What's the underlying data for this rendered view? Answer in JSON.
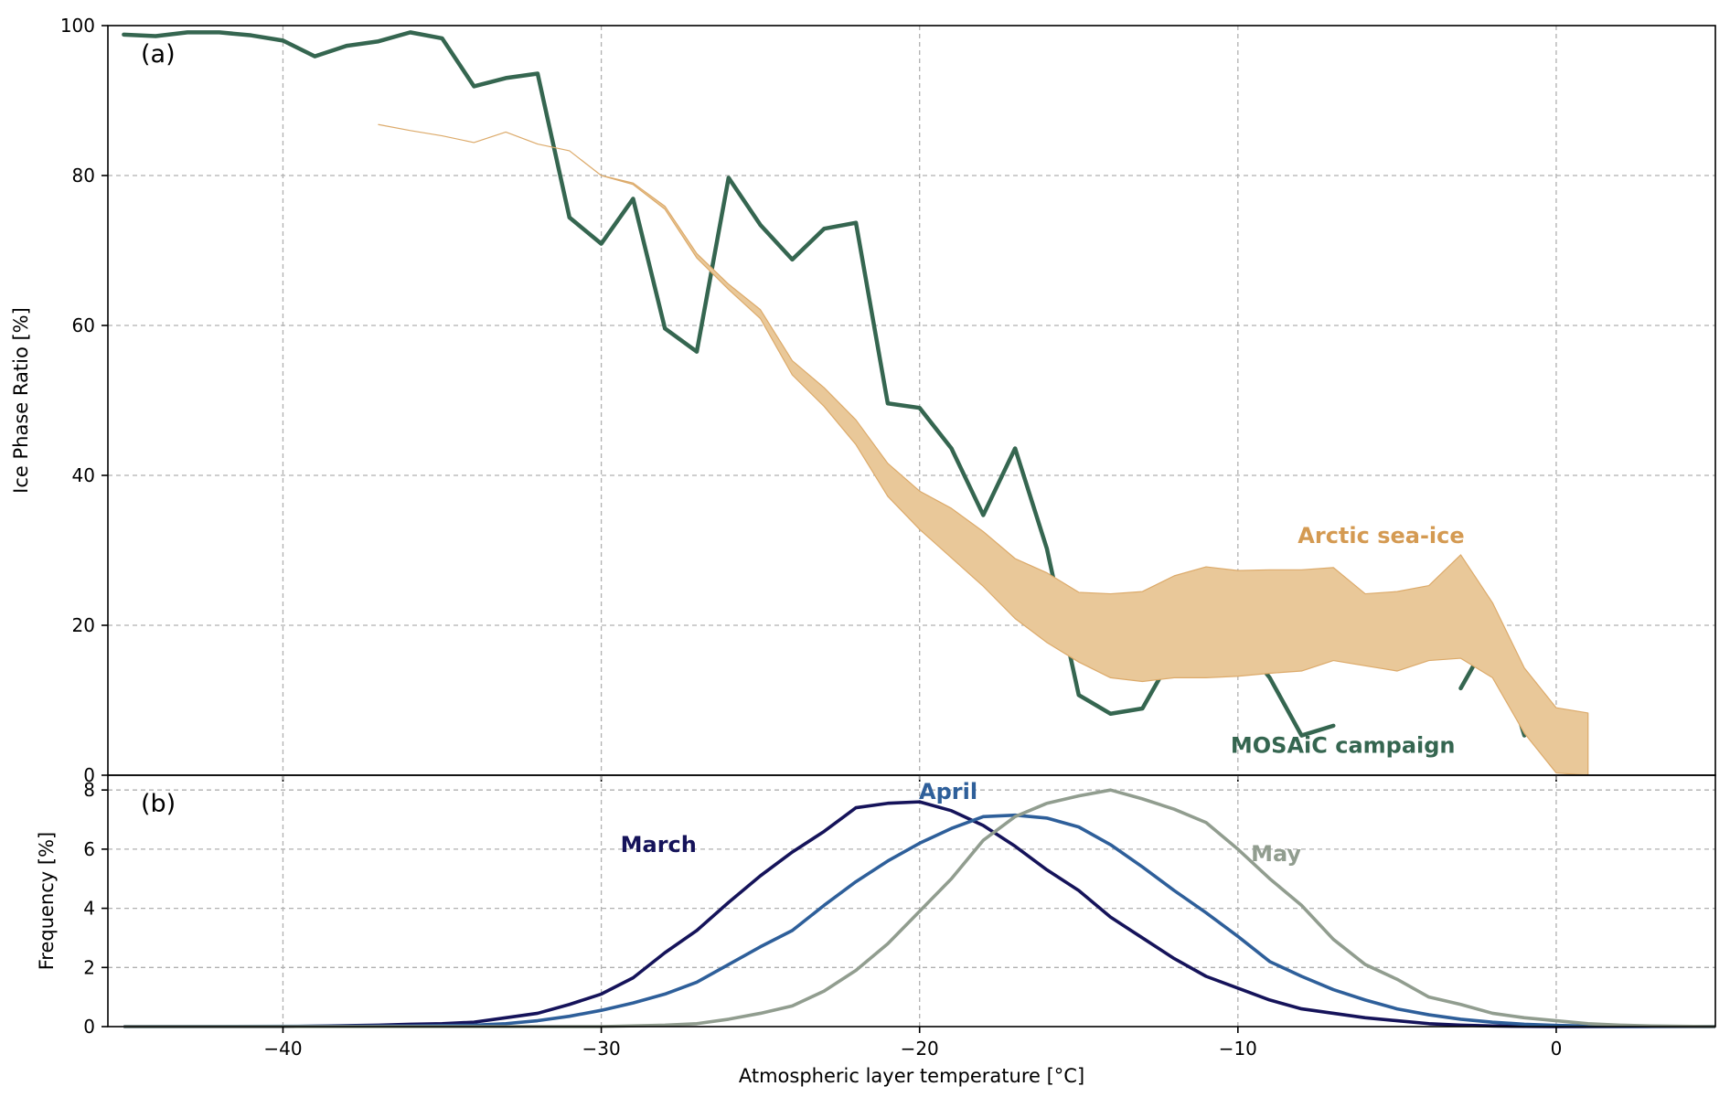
{
  "chart_data": [
    {
      "type": "line",
      "panel_label": "(a)",
      "ylabel": "Ice Phase Ratio [%]",
      "xlabel": "",
      "xlim": [
        -45.5,
        5
      ],
      "ylim": [
        0,
        100
      ],
      "xticks": [
        -40,
        -30,
        -20,
        -10,
        0
      ],
      "xtick_labels": [
        "",
        "",
        "",
        "",
        ""
      ],
      "yticks": [
        0,
        20,
        40,
        60,
        80,
        100
      ],
      "ytick_labels": [
        "0",
        "20",
        "40",
        "60",
        "80",
        "100"
      ],
      "grid": true,
      "series": [
        {
          "name": "MOSAiC campaign",
          "color": "#356650",
          "segments": [
            [
              [
                -45,
                98.8
              ],
              [
                -44,
                98.6
              ],
              [
                -43,
                99.1
              ],
              [
                -42,
                99.1
              ],
              [
                -41,
                98.7
              ],
              [
                -40,
                98.0
              ],
              [
                -39,
                95.9
              ],
              [
                -38,
                97.3
              ],
              [
                -37,
                97.9
              ],
              [
                -36,
                99.1
              ],
              [
                -35,
                98.3
              ],
              [
                -34,
                91.9
              ],
              [
                -33,
                93.0
              ],
              [
                -32,
                93.6
              ],
              [
                -31,
                74.4
              ],
              [
                -30,
                70.9
              ],
              [
                -29,
                76.9
              ],
              [
                -28,
                59.6
              ],
              [
                -27,
                56.5
              ],
              [
                -26,
                79.7
              ],
              [
                -25,
                73.4
              ],
              [
                -24,
                68.8
              ],
              [
                -23,
                72.9
              ],
              [
                -22,
                73.7
              ],
              [
                -21,
                49.6
              ],
              [
                -20,
                49.0
              ],
              [
                -19,
                43.6
              ],
              [
                -18,
                34.7
              ],
              [
                -17,
                43.6
              ],
              [
                -16,
                30.2
              ],
              [
                -15,
                10.7
              ],
              [
                -14,
                8.2
              ],
              [
                -13,
                8.9
              ],
              [
                -12,
                16.4
              ],
              [
                -11,
                16.6
              ],
              [
                -10,
                18.4
              ],
              [
                -9,
                13.0
              ],
              [
                -8,
                5.3
              ],
              [
                -7,
                6.6
              ]
            ],
            [
              [
                -3,
                11.6
              ],
              [
                -2,
                19.1
              ],
              [
                -1,
                5.3
              ]
            ]
          ]
        },
        {
          "name": "Arctic sea-ice",
          "color": "#dcaa6a",
          "fill_color": "#e9c899",
          "upper": [
            [
              -37,
              86.8
            ],
            [
              -36,
              86.0
            ],
            [
              -35,
              85.3
            ],
            [
              -34,
              84.4
            ],
            [
              -33,
              85.8
            ],
            [
              -32,
              84.2
            ],
            [
              -31,
              83.3
            ],
            [
              -30,
              80.0
            ],
            [
              -29,
              79.0
            ],
            [
              -28,
              75.9
            ],
            [
              -27,
              69.6
            ],
            [
              -26,
              65.5
            ],
            [
              -25,
              62.1
            ],
            [
              -24,
              55.3
            ],
            [
              -23,
              51.7
            ],
            [
              -22,
              47.4
            ],
            [
              -21,
              41.6
            ],
            [
              -20,
              37.9
            ],
            [
              -19,
              35.6
            ],
            [
              -18,
              32.5
            ],
            [
              -17,
              28.9
            ],
            [
              -16,
              27.0
            ],
            [
              -15,
              24.4
            ],
            [
              -14,
              24.2
            ],
            [
              -13,
              24.5
            ],
            [
              -12,
              26.6
            ],
            [
              -11,
              27.8
            ],
            [
              -10,
              27.3
            ],
            [
              -9,
              27.4
            ],
            [
              -8,
              27.4
            ],
            [
              -7,
              27.7
            ],
            [
              -6,
              24.2
            ],
            [
              -5,
              24.5
            ],
            [
              -4,
              25.3
            ],
            [
              -3,
              29.4
            ],
            [
              -2,
              23.0
            ],
            [
              -1,
              14.3
            ],
            [
              0,
              9.0
            ],
            [
              1,
              8.3
            ]
          ],
          "lower": [
            [
              -37,
              86.8
            ],
            [
              -36,
              86.0
            ],
            [
              -35,
              85.3
            ],
            [
              -34,
              84.4
            ],
            [
              -33,
              85.8
            ],
            [
              -32,
              84.2
            ],
            [
              -31,
              83.3
            ],
            [
              -30,
              80.0
            ],
            [
              -29,
              78.8
            ],
            [
              -28,
              75.5
            ],
            [
              -27,
              69.0
            ],
            [
              -26,
              64.8
            ],
            [
              -25,
              60.9
            ],
            [
              -24,
              53.4
            ],
            [
              -23,
              49.2
            ],
            [
              -22,
              44.1
            ],
            [
              -21,
              37.2
            ],
            [
              -20,
              32.8
            ],
            [
              -19,
              29.0
            ],
            [
              -18,
              25.2
            ],
            [
              -17,
              20.9
            ],
            [
              -16,
              17.7
            ],
            [
              -15,
              15.1
            ],
            [
              -14,
              13.0
            ],
            [
              -13,
              12.5
            ],
            [
              -12,
              13.0
            ],
            [
              -11,
              13.0
            ],
            [
              -10,
              13.2
            ],
            [
              -9,
              13.6
            ],
            [
              -8,
              13.9
            ],
            [
              -7,
              15.3
            ],
            [
              -6,
              14.6
            ],
            [
              -5,
              13.9
            ],
            [
              -4,
              15.3
            ],
            [
              -3,
              15.6
            ],
            [
              -2,
              13.0
            ],
            [
              -1,
              5.6
            ],
            [
              0,
              0.3
            ],
            [
              1,
              0
            ]
          ]
        }
      ],
      "annotations": [
        {
          "text": "Arctic sea-ice",
          "x": -5.5,
          "y": 31,
          "color": "#d49a52"
        },
        {
          "text": "MOSAiC campaign",
          "x": -6.7,
          "y": 3,
          "color": "#356650"
        }
      ]
    },
    {
      "type": "line",
      "panel_label": "(b)",
      "ylabel": "Frequency [%]",
      "xlabel": "Atmospheric layer temperature [°C]",
      "xlim": [
        -45.5,
        5
      ],
      "ylim": [
        0,
        8.5
      ],
      "xticks": [
        -40,
        -30,
        -20,
        -10,
        0
      ],
      "xtick_labels": [
        "−40",
        "−30",
        "−20",
        "−10",
        "0"
      ],
      "yticks": [
        0,
        2,
        4,
        6,
        8
      ],
      "ytick_labels": [
        "0",
        "2",
        "4",
        "6",
        "8"
      ],
      "grid": true,
      "series": [
        {
          "name": "March",
          "color": "#15135a",
          "points": [
            [
              -45,
              0
            ],
            [
              -40,
              0
            ],
            [
              -37,
              0.05
            ],
            [
              -36,
              0.08
            ],
            [
              -35,
              0.1
            ],
            [
              -34,
              0.15
            ],
            [
              -33,
              0.3
            ],
            [
              -32,
              0.45
            ],
            [
              -31,
              0.75
            ],
            [
              -30,
              1.1
            ],
            [
              -29,
              1.65
            ],
            [
              -28,
              2.5
            ],
            [
              -27,
              3.25
            ],
            [
              -26,
              4.2
            ],
            [
              -25,
              5.1
            ],
            [
              -24,
              5.9
            ],
            [
              -23,
              6.6
            ],
            [
              -22,
              7.4
            ],
            [
              -21,
              7.55
            ],
            [
              -20,
              7.6
            ],
            [
              -19,
              7.3
            ],
            [
              -18,
              6.8
            ],
            [
              -17,
              6.1
            ],
            [
              -16,
              5.3
            ],
            [
              -15,
              4.6
            ],
            [
              -14,
              3.7
            ],
            [
              -13,
              3.0
            ],
            [
              -12,
              2.3
            ],
            [
              -11,
              1.7
            ],
            [
              -10,
              1.3
            ],
            [
              -9,
              0.9
            ],
            [
              -8,
              0.6
            ],
            [
              -7,
              0.45
            ],
            [
              -6,
              0.3
            ],
            [
              -5,
              0.2
            ],
            [
              -4,
              0.1
            ],
            [
              -3,
              0.05
            ],
            [
              -2,
              0.02
            ],
            [
              0,
              0
            ],
            [
              5,
              0
            ]
          ]
        },
        {
          "name": "April",
          "color": "#2e5f9a",
          "points": [
            [
              -45,
              0
            ],
            [
              -36,
              0.02
            ],
            [
              -34,
              0.05
            ],
            [
              -33,
              0.1
            ],
            [
              -32,
              0.2
            ],
            [
              -31,
              0.35
            ],
            [
              -30,
              0.55
            ],
            [
              -29,
              0.8
            ],
            [
              -28,
              1.1
            ],
            [
              -27,
              1.5
            ],
            [
              -26,
              2.1
            ],
            [
              -25,
              2.7
            ],
            [
              -24,
              3.25
            ],
            [
              -23,
              4.1
            ],
            [
              -22,
              4.9
            ],
            [
              -21,
              5.6
            ],
            [
              -20,
              6.2
            ],
            [
              -19,
              6.7
            ],
            [
              -18,
              7.1
            ],
            [
              -17,
              7.15
            ],
            [
              -16,
              7.05
            ],
            [
              -15,
              6.75
            ],
            [
              -14,
              6.15
            ],
            [
              -13,
              5.4
            ],
            [
              -12,
              4.6
            ],
            [
              -11,
              3.85
            ],
            [
              -10,
              3.05
            ],
            [
              -9,
              2.2
            ],
            [
              -8,
              1.7
            ],
            [
              -7,
              1.25
            ],
            [
              -6,
              0.9
            ],
            [
              -5,
              0.6
            ],
            [
              -4,
              0.4
            ],
            [
              -3,
              0.25
            ],
            [
              -2,
              0.15
            ],
            [
              -1,
              0.08
            ],
            [
              0,
              0.04
            ],
            [
              1,
              0.02
            ],
            [
              5,
              0
            ]
          ]
        },
        {
          "name": "May",
          "color": "#919d8f",
          "points": [
            [
              -45,
              0
            ],
            [
              -30,
              0
            ],
            [
              -28,
              0.05
            ],
            [
              -27,
              0.1
            ],
            [
              -26,
              0.25
            ],
            [
              -25,
              0.45
            ],
            [
              -24,
              0.7
            ],
            [
              -23,
              1.2
            ],
            [
              -22,
              1.9
            ],
            [
              -21,
              2.8
            ],
            [
              -20,
              3.9
            ],
            [
              -19,
              5.0
            ],
            [
              -18,
              6.3
            ],
            [
              -17,
              7.1
            ],
            [
              -16,
              7.55
            ],
            [
              -15,
              7.8
            ],
            [
              -14,
              8.0
            ],
            [
              -13,
              7.7
            ],
            [
              -12,
              7.35
            ],
            [
              -11,
              6.9
            ],
            [
              -10,
              6.0
            ],
            [
              -9,
              5.0
            ],
            [
              -8,
              4.1
            ],
            [
              -7,
              2.95
            ],
            [
              -6,
              2.1
            ],
            [
              -5,
              1.6
            ],
            [
              -4,
              1.0
            ],
            [
              -3,
              0.75
            ],
            [
              -2,
              0.45
            ],
            [
              -1,
              0.3
            ],
            [
              0,
              0.2
            ],
            [
              1,
              0.1
            ],
            [
              2,
              0.05
            ],
            [
              3,
              0.02
            ],
            [
              5,
              0
            ]
          ]
        }
      ],
      "annotations": [
        {
          "text": "March",
          "x": -28.2,
          "y": 5.9,
          "color": "#15135a"
        },
        {
          "text": "April",
          "x": -19.1,
          "y": 7.7,
          "color": "#2e5f9a"
        },
        {
          "text": "May",
          "x": -8.8,
          "y": 5.6,
          "color": "#919d8f"
        }
      ]
    }
  ]
}
